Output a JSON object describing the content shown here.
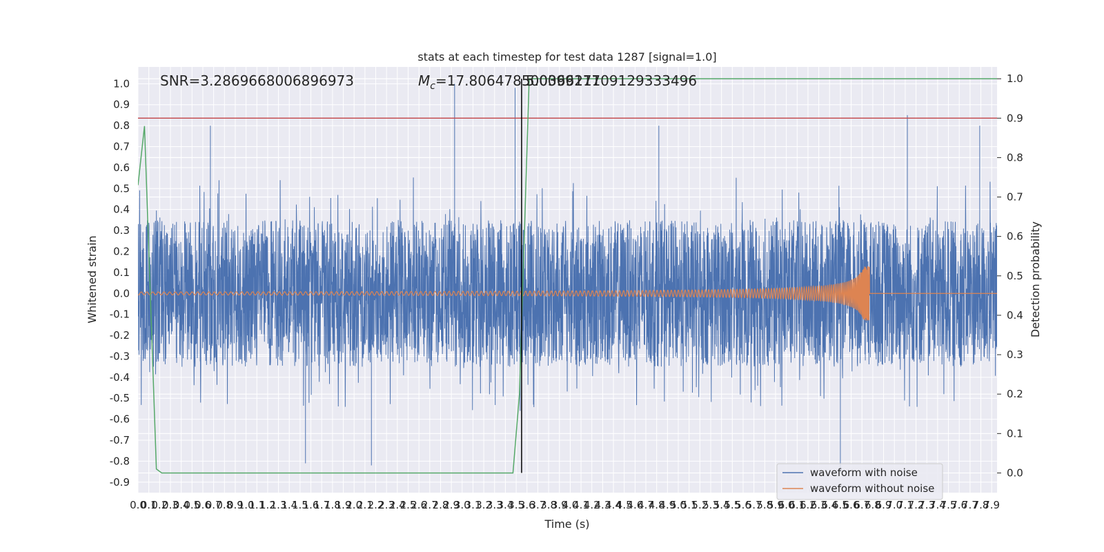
{
  "chart_data": {
    "type": "line",
    "title": "stats at each timestep for test data 1287 [signal=1.0]",
    "xlabel": "Time (s)",
    "ylabel": "Whitened strain",
    "y2label": "Detection probability",
    "xlim": [
      0.0,
      7.95
    ],
    "ylim": [
      -0.95,
      1.08
    ],
    "y2lim": [
      -0.05,
      1.03
    ],
    "x_ticks": [
      "0.0",
      "0.1",
      "0.2",
      "0.3",
      "0.4",
      "0.5",
      "0.6",
      "0.7",
      "0.8",
      "0.9",
      "1.0",
      "1.1",
      "1.2",
      "1.3",
      "1.4",
      "1.5",
      "1.6",
      "1.7",
      "1.8",
      "1.9",
      "2.0",
      "2.1",
      "2.2",
      "2.3",
      "2.4",
      "2.5",
      "2.6",
      "2.7",
      "2.8",
      "2.9",
      "3.0",
      "3.1",
      "3.2",
      "3.3",
      "3.4",
      "3.5",
      "3.6",
      "3.7",
      "3.8",
      "3.9",
      "4.0",
      "4.1",
      "4.2",
      "4.3",
      "4.4",
      "4.5",
      "4.6",
      "4.7",
      "4.8",
      "4.9",
      "5.0",
      "5.1",
      "5.2",
      "5.3",
      "5.4",
      "5.5",
      "5.6",
      "5.7",
      "5.8",
      "5.9",
      "6.0",
      "6.1",
      "6.2",
      "6.3",
      "6.4",
      "6.5",
      "6.6",
      "6.7",
      "6.8",
      "6.9",
      "7.0",
      "7.1",
      "7.2",
      "7.3",
      "7.4",
      "7.5",
      "7.6",
      "7.7",
      "7.8",
      "7.9"
    ],
    "y_ticks": [
      "-0.9",
      "-0.8",
      "-0.7",
      "-0.6",
      "-0.5",
      "-0.4",
      "-0.3",
      "-0.2",
      "-0.1",
      "0.0",
      "0.1",
      "0.2",
      "0.3",
      "0.4",
      "0.5",
      "0.6",
      "0.7",
      "0.8",
      "0.9",
      "1.0"
    ],
    "y2_ticks": [
      "0.0",
      "0.1",
      "0.2",
      "0.3",
      "0.4",
      "0.5",
      "0.6",
      "0.7",
      "0.8",
      "0.9",
      "1.0"
    ],
    "annotations": {
      "snr": "SNR=3.2869668006896973",
      "mc_symbol": "M",
      "mc_sub": "c",
      "mc_value": "=17.806478500366211",
      "overlap_value": "5.009917709129333496"
    },
    "series": [
      {
        "name": "waveform with noise",
        "color": "#4c72b0",
        "noise_amplitude": 0.35,
        "spikes": [
          {
            "x": 2.93,
            "y": 1.0
          },
          {
            "x": 3.49,
            "y": 0.98
          },
          {
            "x": 7.12,
            "y": 0.85
          },
          {
            "x": 0.67,
            "y": 0.8
          },
          {
            "x": 4.82,
            "y": 0.8
          },
          {
            "x": 7.79,
            "y": 0.8
          },
          {
            "x": 6.5,
            "y": -0.86
          },
          {
            "x": 2.16,
            "y": -0.82
          },
          {
            "x": 1.55,
            "y": -0.81
          }
        ]
      },
      {
        "name": "waveform without noise",
        "color": "#dd8452",
        "chirp_end": 6.77,
        "peak_amplitude": 0.13,
        "base_amplitude": 0.007
      }
    ],
    "detection_probability": {
      "color": "#55a868",
      "points": [
        [
          0.0,
          0.73
        ],
        [
          0.06,
          0.88
        ],
        [
          0.17,
          0.01
        ],
        [
          0.22,
          0.0
        ],
        [
          3.47,
          0.0
        ],
        [
          3.53,
          0.2
        ],
        [
          3.62,
          1.0
        ],
        [
          7.95,
          1.0
        ]
      ]
    },
    "threshold": {
      "color": "#c44e52",
      "y2": 0.9
    },
    "marker_line": {
      "color": "#000000",
      "x": 3.55
    },
    "legend_position": "lower-right",
    "grid": true
  }
}
